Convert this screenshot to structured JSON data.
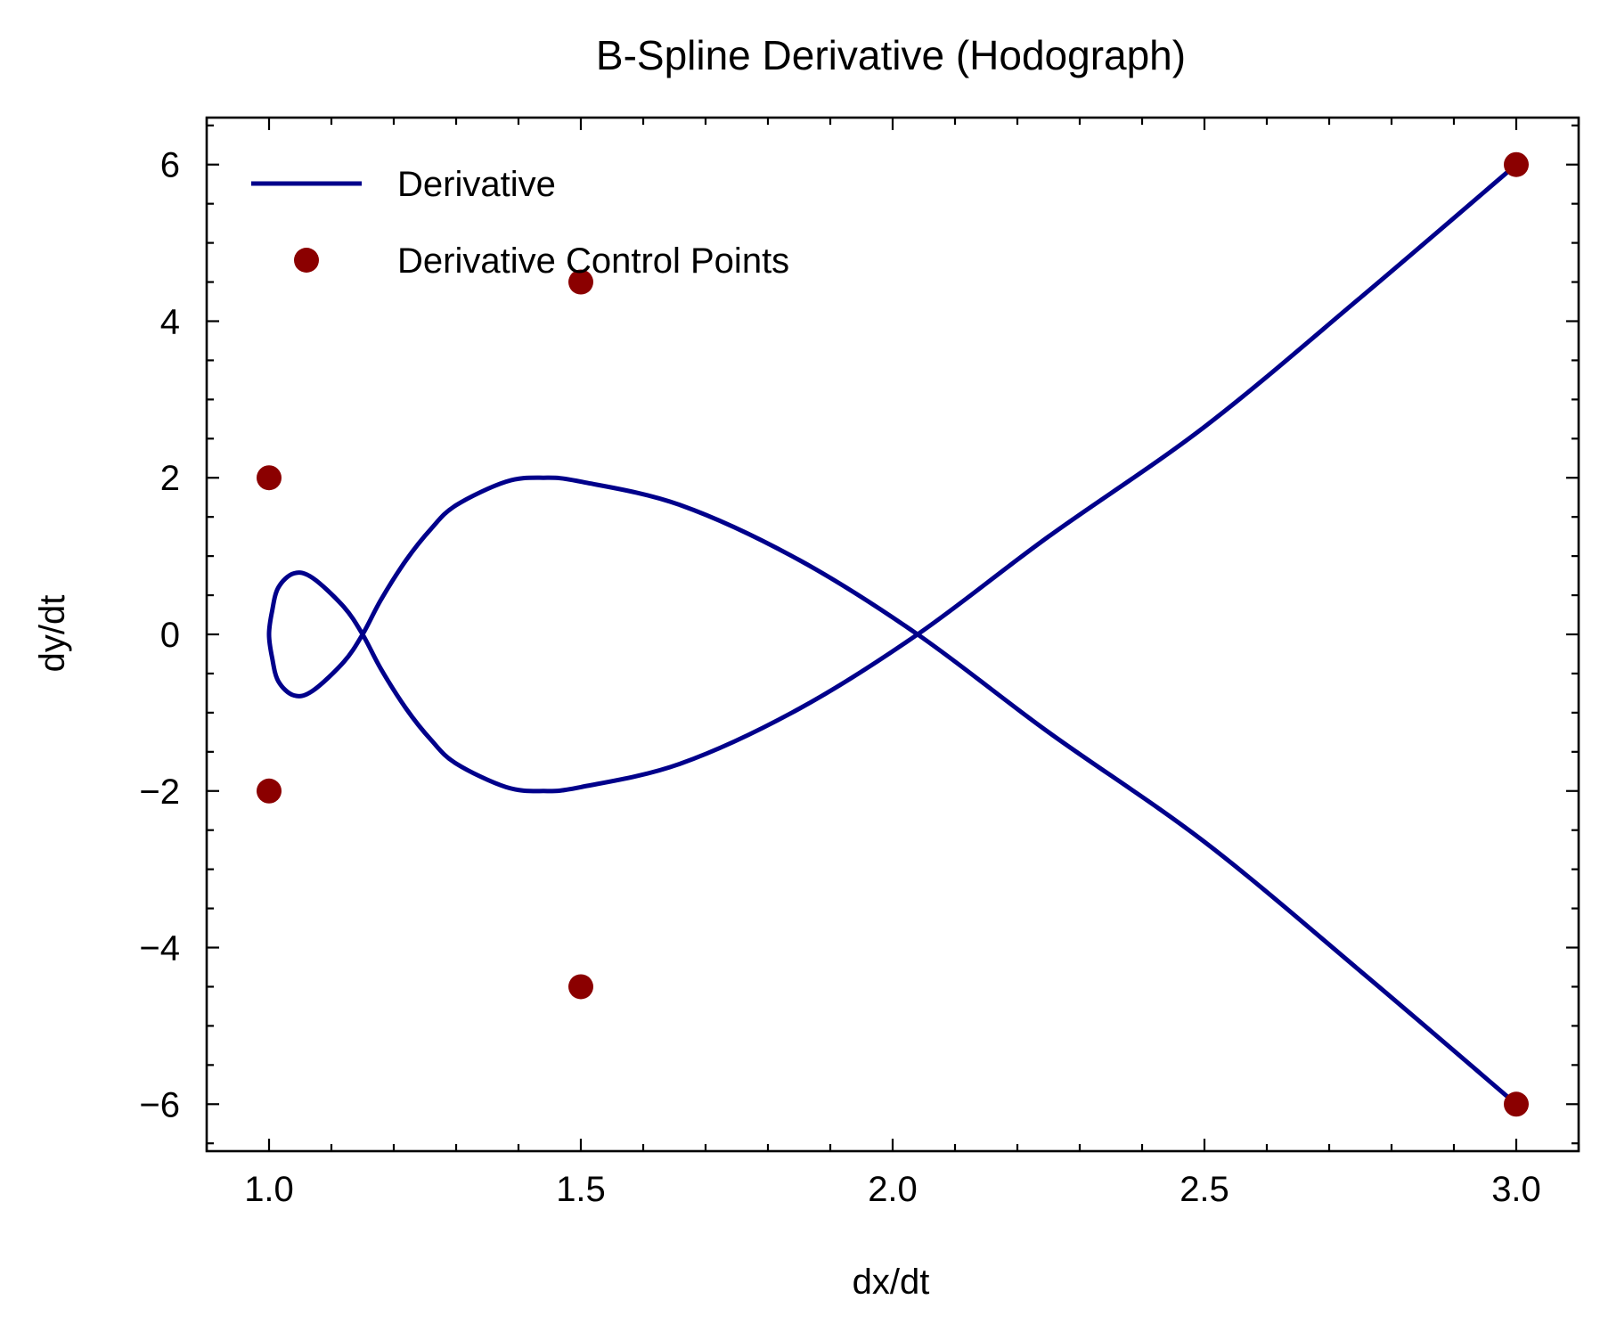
{
  "chart_data": {
    "type": "line",
    "title": "B-Spline Derivative (Hodograph)",
    "xlabel": "dx/dt",
    "ylabel": "dy/dt",
    "xlim": [
      0.9,
      3.1
    ],
    "ylim": [
      -6.6,
      6.6
    ],
    "xticks": [
      1.0,
      1.5,
      2.0,
      2.5,
      3.0
    ],
    "xtick_labels": [
      "1.0",
      "1.5",
      "2.0",
      "2.5",
      "3.0"
    ],
    "yticks": [
      -6,
      -4,
      -2,
      0,
      2,
      4,
      6
    ],
    "ytick_labels": [
      "−6",
      "−4",
      "−2",
      "0",
      "2",
      "4",
      "6"
    ],
    "legend_position": "top-left",
    "grid": false,
    "series": [
      {
        "name": "Derivative",
        "kind": "line",
        "color": "#00008b",
        "points": [
          [
            3.0,
            -6.0
          ],
          [
            2.75,
            -4.3
          ],
          [
            2.5,
            -2.65
          ],
          [
            2.25,
            -1.25
          ],
          [
            2.04,
            0.0
          ],
          [
            1.85,
            0.95
          ],
          [
            1.66,
            1.65
          ],
          [
            1.5,
            1.95
          ],
          [
            1.44,
            2.0
          ],
          [
            1.38,
            1.95
          ],
          [
            1.3,
            1.65
          ],
          [
            1.26,
            1.35
          ],
          [
            1.22,
            0.95
          ],
          [
            1.18,
            0.45
          ],
          [
            1.15,
            0.0
          ],
          [
            1.12,
            -0.35
          ],
          [
            1.07,
            -0.72
          ],
          [
            1.04,
            -0.78
          ],
          [
            1.015,
            -0.6
          ],
          [
            1.005,
            -0.3
          ],
          [
            1.0,
            0.0
          ],
          [
            1.005,
            0.3
          ],
          [
            1.015,
            0.6
          ],
          [
            1.04,
            0.78
          ],
          [
            1.07,
            0.72
          ],
          [
            1.12,
            0.35
          ],
          [
            1.15,
            0.0
          ],
          [
            1.18,
            -0.45
          ],
          [
            1.22,
            -0.95
          ],
          [
            1.26,
            -1.35
          ],
          [
            1.3,
            -1.65
          ],
          [
            1.38,
            -1.95
          ],
          [
            1.44,
            -2.0
          ],
          [
            1.5,
            -1.95
          ],
          [
            1.66,
            -1.65
          ],
          [
            1.85,
            -0.95
          ],
          [
            2.04,
            0.0
          ],
          [
            2.25,
            1.25
          ],
          [
            2.5,
            2.65
          ],
          [
            2.75,
            4.3
          ],
          [
            3.0,
            6.0
          ]
        ]
      },
      {
        "name": "Derivative Control Points",
        "kind": "scatter",
        "color": "#8b0000",
        "points": [
          [
            3.0,
            6.0
          ],
          [
            1.5,
            4.5
          ],
          [
            1.0,
            2.0
          ],
          [
            1.0,
            -2.0
          ],
          [
            1.5,
            -4.5
          ],
          [
            3.0,
            -6.0
          ]
        ]
      }
    ]
  }
}
